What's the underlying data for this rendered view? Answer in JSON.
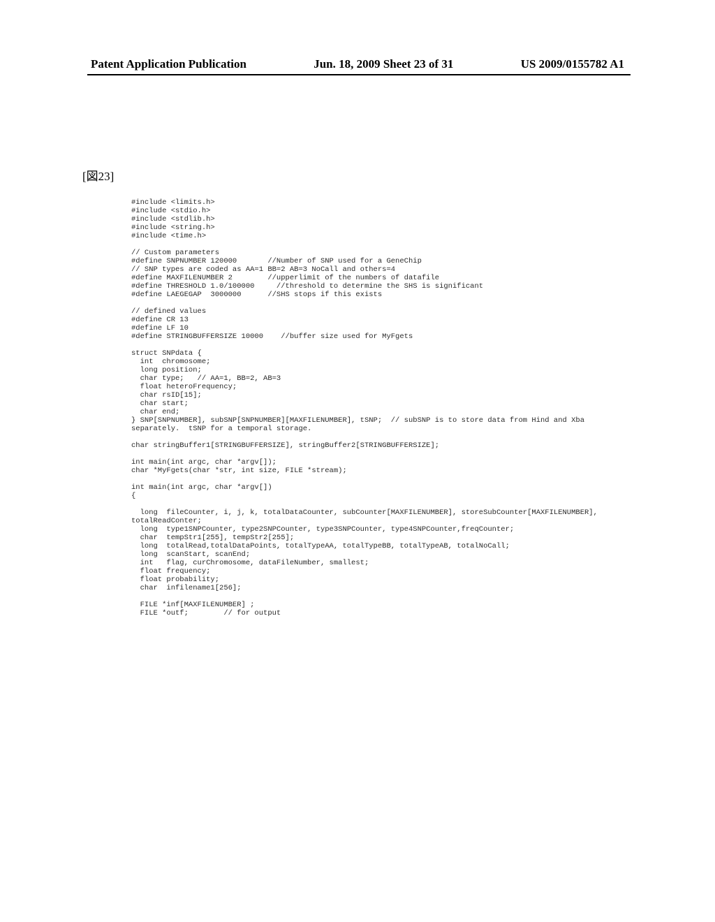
{
  "header": {
    "left": "Patent Application Publication",
    "center": "Jun. 18, 2009  Sheet 23 of 31",
    "right": "US 2009/0155782 A1"
  },
  "figure_label": "[図23]",
  "code": "#include <limits.h>\n#include <stdio.h>\n#include <stdlib.h>\n#include <string.h>\n#include <time.h>\n\n// Custom parameters\n#define SNPNUMBER 120000       //Number of SNP used for a GeneChip\n// SNP types are coded as AA=1 BB=2 AB=3 NoCall and others=4\n#define MAXFILENUMBER 2        //upperlimit of the numbers of datafile\n#define THRESHOLD 1.0/100000     //threshold to determine the SHS is significant\n#define LAEGEGAP  3000000      //SHS stops if this exists\n\n// defined values\n#define CR 13\n#define LF 10\n#define STRINGBUFFERSIZE 10000    //buffer size used for MyFgets\n\nstruct SNPdata {\n  int  chromosome;\n  long position;\n  char type;   // AA=1, BB=2, AB=3\n  float heteroFrequency;\n  char rsID[15];\n  char start;\n  char end;\n} SNP[SNPNUMBER], subSNP[SNPNUMBER][MAXFILENUMBER], tSNP;  // subSNP is to store data from Hind and Xba\nseparately.  tSNP for a temporal storage.\n\nchar stringBuffer1[STRINGBUFFERSIZE], stringBuffer2[STRINGBUFFERSIZE];\n\nint main(int argc, char *argv[]);\nchar *MyFgets(char *str, int size, FILE *stream);\n\nint main(int argc, char *argv[])\n{\n\n  long  fileCounter, i, j, k, totalDataCounter, subCounter[MAXFILENUMBER], storeSubCounter[MAXFILENUMBER],\ntotalReadConter;\n  long  type1SNPCounter, type2SNPCounter, type3SNPCounter, type4SNPCounter,freqCounter;\n  char  tempStr1[255], tempStr2[255];\n  long  totalRead,totalDataPoints, totalTypeAA, totalTypeBB, totalTypeAB, totalNoCall;\n  long  scanStart, scanEnd;\n  int   flag, curChromosome, dataFileNumber, smallest;\n  float frequency;\n  float probability;\n  char  infilename1[256];\n\n  FILE *inf[MAXFILENUMBER] ;\n  FILE *outf;        // for output"
}
